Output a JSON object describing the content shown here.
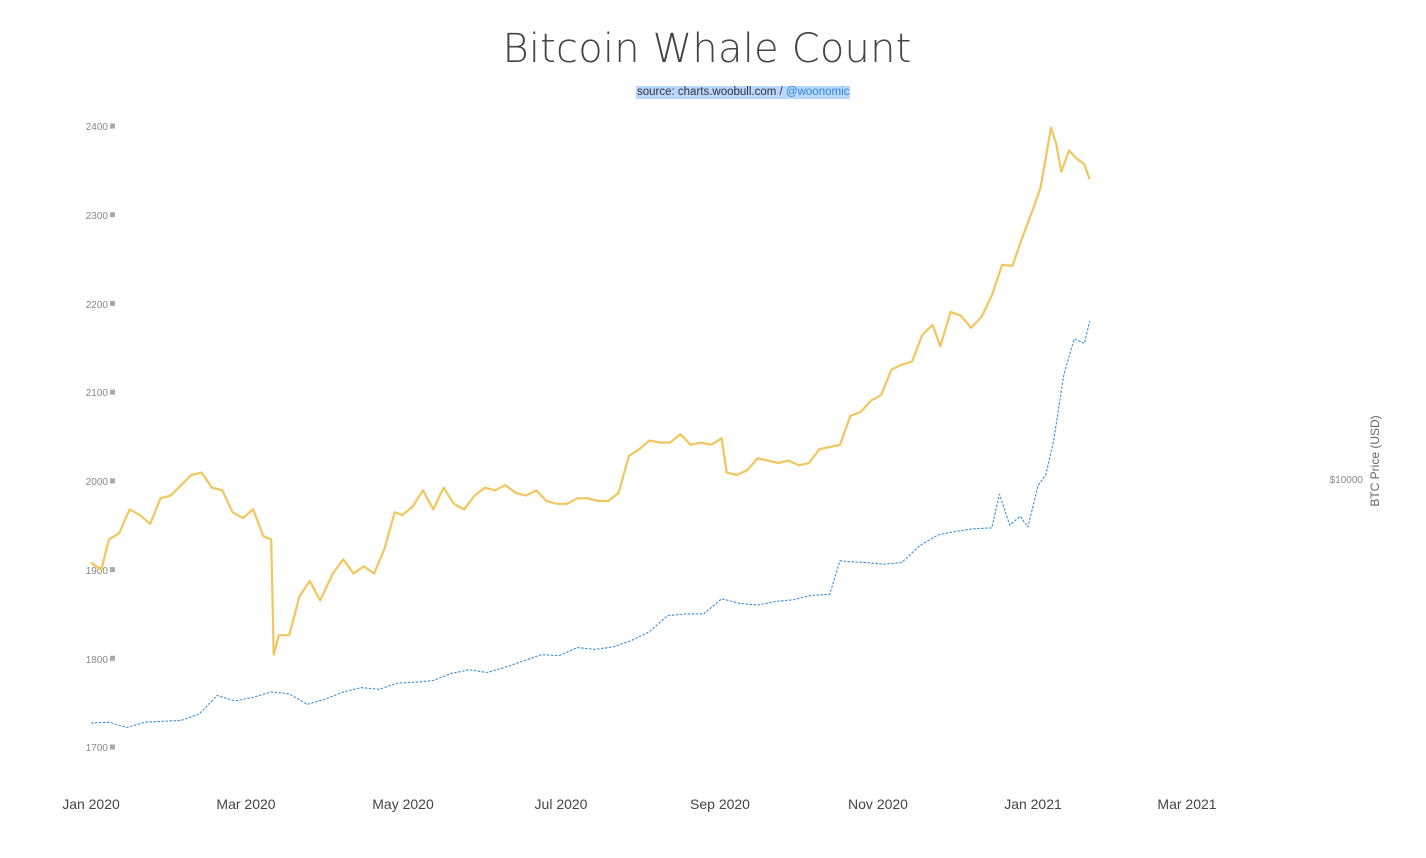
{
  "title": "Bitcoin Whale Count",
  "source": {
    "prefix": "source: charts.woobull.com / ",
    "handle": "@woonomic"
  },
  "colors": {
    "price_line": "#f2c65c",
    "whale_line": "#3a8fd8",
    "tick_text": "#888888",
    "axis_text": "#444444",
    "highlight": "#b9d7ff"
  },
  "chart_data": {
    "type": "line",
    "title": "Bitcoin Whale Count",
    "x_ticks": [
      "Jan 2020",
      "Mar 2020",
      "May 2020",
      "Jul 2020",
      "Sep 2020",
      "Nov 2020",
      "Jan 2021",
      "Mar 2021"
    ],
    "x_range": [
      "2020-01-01",
      "2021-04-15"
    ],
    "y_ticks": [
      "2400",
      "2300",
      "2200",
      "2100",
      "2000",
      "1900",
      "1800",
      "1700"
    ],
    "ylim": [
      1700,
      2400
    ],
    "y2_label": "BTC Price (USD)",
    "y2_ticks": [
      "$10000"
    ],
    "y2_scale": "log",
    "grid": false,
    "series": [
      {
        "name": "",
        "color": "#3a8fd8",
        "style": "dashed",
        "axis": "left",
        "x": [
          "2020-01-01",
          "2020-01-08",
          "2020-01-15",
          "2020-01-22",
          "2020-01-29",
          "2020-02-05",
          "2020-02-12",
          "2020-02-19",
          "2020-02-26",
          "2020-03-04",
          "2020-03-11",
          "2020-03-18",
          "2020-03-25",
          "2020-04-01",
          "2020-04-08",
          "2020-04-15",
          "2020-04-22",
          "2020-04-29",
          "2020-05-06",
          "2020-05-13",
          "2020-05-20",
          "2020-05-27",
          "2020-06-03",
          "2020-06-10",
          "2020-06-17",
          "2020-06-24",
          "2020-07-01",
          "2020-07-08",
          "2020-07-15",
          "2020-07-22",
          "2020-07-29",
          "2020-08-05",
          "2020-08-12",
          "2020-08-19",
          "2020-08-26",
          "2020-09-02",
          "2020-09-09",
          "2020-09-16",
          "2020-09-23",
          "2020-09-30",
          "2020-10-07",
          "2020-10-14",
          "2020-10-18",
          "2020-10-21",
          "2020-10-28",
          "2020-11-04",
          "2020-11-11",
          "2020-11-18",
          "2020-11-25",
          "2020-12-02",
          "2020-12-09",
          "2020-12-16",
          "2020-12-19",
          "2020-12-23",
          "2020-12-27",
          "2020-12-30",
          "2021-01-03",
          "2021-01-06",
          "2021-01-09",
          "2021-01-13",
          "2021-01-17",
          "2021-01-21",
          "2021-01-23"
        ],
        "values": [
          1727,
          1728,
          1722,
          1728,
          1729,
          1730,
          1737,
          1758,
          1752,
          1756,
          1762,
          1760,
          1748,
          1754,
          1762,
          1767,
          1765,
          1772,
          1773,
          1775,
          1783,
          1787,
          1784,
          1790,
          1797,
          1804,
          1803,
          1812,
          1810,
          1813,
          1820,
          1830,
          1848,
          1850,
          1850,
          1867,
          1862,
          1860,
          1864,
          1866,
          1871,
          1872,
          1910,
          1909,
          1908,
          1906,
          1908,
          1927,
          1939,
          1943,
          1946,
          1947,
          1985,
          1950,
          1960,
          1948,
          1995,
          2007,
          2045,
          2120,
          2160,
          2155,
          2180
        ]
      },
      {
        "name": "BTC Price (USD)",
        "color": "#f2c65c",
        "style": "solid",
        "axis": "right",
        "x": [
          "2020-01-01",
          "2020-01-05",
          "2020-01-08",
          "2020-01-12",
          "2020-01-16",
          "2020-01-20",
          "2020-01-24",
          "2020-01-28",
          "2020-02-01",
          "2020-02-05",
          "2020-02-09",
          "2020-02-13",
          "2020-02-17",
          "2020-02-21",
          "2020-02-25",
          "2020-02-29",
          "2020-03-04",
          "2020-03-08",
          "2020-03-11",
          "2020-03-12",
          "2020-03-14",
          "2020-03-18",
          "2020-03-22",
          "2020-03-26",
          "2020-03-30",
          "2020-04-04",
          "2020-04-08",
          "2020-04-12",
          "2020-04-16",
          "2020-04-20",
          "2020-04-24",
          "2020-04-28",
          "2020-05-01",
          "2020-05-05",
          "2020-05-09",
          "2020-05-13",
          "2020-05-17",
          "2020-05-21",
          "2020-05-25",
          "2020-05-29",
          "2020-06-02",
          "2020-06-06",
          "2020-06-10",
          "2020-06-14",
          "2020-06-18",
          "2020-06-22",
          "2020-06-26",
          "2020-06-30",
          "2020-07-04",
          "2020-07-08",
          "2020-07-12",
          "2020-07-16",
          "2020-07-20",
          "2020-07-24",
          "2020-07-28",
          "2020-08-01",
          "2020-08-05",
          "2020-08-09",
          "2020-08-13",
          "2020-08-17",
          "2020-08-21",
          "2020-08-25",
          "2020-08-29",
          "2020-09-02",
          "2020-09-04",
          "2020-09-08",
          "2020-09-12",
          "2020-09-16",
          "2020-09-20",
          "2020-09-24",
          "2020-09-28",
          "2020-10-02",
          "2020-10-06",
          "2020-10-10",
          "2020-10-14",
          "2020-10-18",
          "2020-10-22",
          "2020-10-26",
          "2020-10-30",
          "2020-11-03",
          "2020-11-07",
          "2020-11-11",
          "2020-11-15",
          "2020-11-19",
          "2020-11-23",
          "2020-11-26",
          "2020-11-30",
          "2020-12-04",
          "2020-12-08",
          "2020-12-12",
          "2020-12-16",
          "2020-12-20",
          "2020-12-24",
          "2020-12-28",
          "2021-01-01",
          "2021-01-04",
          "2021-01-08",
          "2021-01-10",
          "2021-01-12",
          "2021-01-15",
          "2021-01-18",
          "2021-01-21",
          "2021-01-23"
        ],
        "values": [
          7200,
          7000,
          7900,
          8100,
          8900,
          8700,
          8400,
          9300,
          9400,
          9800,
          10200,
          10300,
          9700,
          9600,
          8800,
          8600,
          8900,
          8000,
          7900,
          5000,
          5400,
          5400,
          6300,
          6700,
          6200,
          6900,
          7300,
          6900,
          7100,
          6900,
          7600,
          8800,
          8700,
          9000,
          9600,
          8900,
          9700,
          9100,
          8900,
          9400,
          9700,
          9600,
          9800,
          9500,
          9400,
          9600,
          9200,
          9100,
          9100,
          9300,
          9300,
          9200,
          9200,
          9500,
          11000,
          11300,
          11700,
          11600,
          11600,
          12000,
          11500,
          11600,
          11500,
          11800,
          10300,
          10200,
          10400,
          10900,
          10800,
          10700,
          10800,
          10600,
          10700,
          11300,
          11400,
          11500,
          12900,
          13100,
          13700,
          14000,
          15500,
          15800,
          16000,
          17800,
          18500,
          17000,
          19500,
          19200,
          18300,
          19100,
          20800,
          23500,
          23400,
          26300,
          29300,
          32000,
          40500,
          38000,
          34000,
          37000,
          35800,
          35000,
          33000
        ]
      }
    ]
  }
}
